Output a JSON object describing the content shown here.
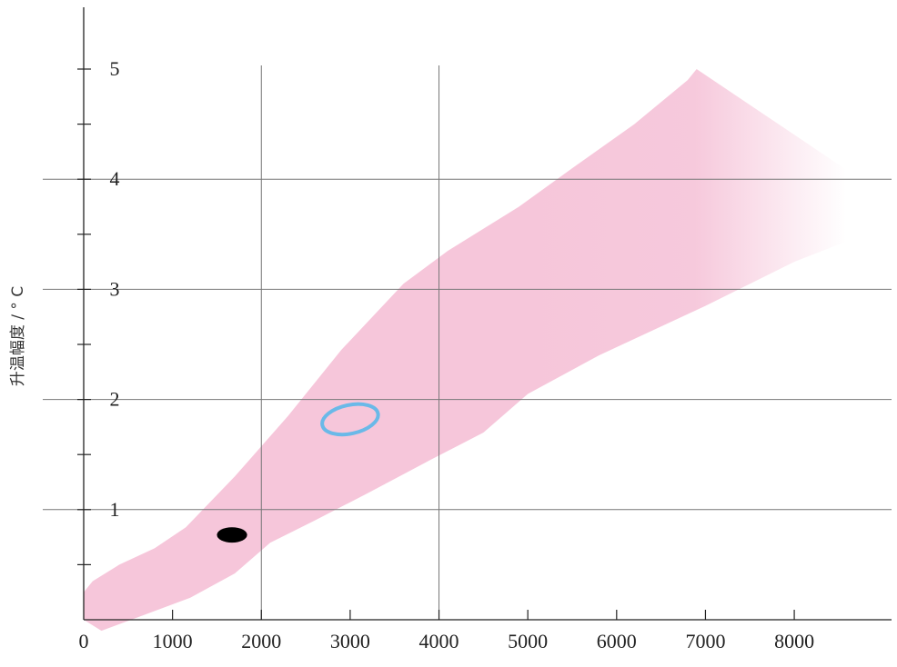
{
  "chart_data": {
    "type": "area",
    "title": "",
    "xlabel": "",
    "ylabel": "升温幅度 / ° C",
    "xlim": [
      0,
      9300
    ],
    "ylim": [
      0,
      5.0
    ],
    "x_ticks": [
      0,
      1000,
      2000,
      3000,
      4000,
      5000,
      6000,
      7000,
      8000
    ],
    "y_ticks": [
      1,
      2,
      3,
      4,
      5
    ],
    "y_minor_ticks": [
      0.5,
      1.5,
      2.5,
      3.5,
      4.5
    ],
    "grid": {
      "vertical": [
        2000,
        4000
      ],
      "horizontal": [
        1,
        2,
        3,
        4
      ]
    },
    "band": {
      "color": "#f6c6da",
      "upper": [
        {
          "x": 0,
          "y": 0.25
        },
        {
          "x": 100,
          "y": 0.35
        },
        {
          "x": 400,
          "y": 0.5
        },
        {
          "x": 800,
          "y": 0.65
        },
        {
          "x": 1150,
          "y": 0.84
        },
        {
          "x": 1700,
          "y": 1.3
        },
        {
          "x": 2300,
          "y": 1.85
        },
        {
          "x": 2900,
          "y": 2.45
        },
        {
          "x": 3600,
          "y": 3.05
        },
        {
          "x": 4100,
          "y": 3.35
        },
        {
          "x": 4900,
          "y": 3.75
        },
        {
          "x": 5500,
          "y": 4.1
        },
        {
          "x": 6200,
          "y": 4.5
        },
        {
          "x": 6800,
          "y": 4.9
        },
        {
          "x": 6900,
          "y": 5.0
        }
      ],
      "lower": [
        {
          "x": 0,
          "y": 0.0
        },
        {
          "x": 200,
          "y": -0.1
        },
        {
          "x": 600,
          "y": 0.02
        },
        {
          "x": 1200,
          "y": 0.2
        },
        {
          "x": 1700,
          "y": 0.42
        },
        {
          "x": 2100,
          "y": 0.7
        },
        {
          "x": 2600,
          "y": 0.9
        },
        {
          "x": 3200,
          "y": 1.15
        },
        {
          "x": 3900,
          "y": 1.45
        },
        {
          "x": 4500,
          "y": 1.7
        },
        {
          "x": 5000,
          "y": 2.05
        },
        {
          "x": 5800,
          "y": 2.4
        },
        {
          "x": 7000,
          "y": 2.85
        },
        {
          "x": 8000,
          "y": 3.25
        },
        {
          "x": 8800,
          "y": 3.5
        }
      ]
    },
    "markers": [
      {
        "type": "filled-ellipse",
        "color": "#000000",
        "x": 1670,
        "y": 0.77,
        "rx": 170,
        "ry": 0.07
      },
      {
        "type": "ring-ellipse",
        "color": "#6ab9e8",
        "x": 3000,
        "y": 1.82,
        "rx": 320,
        "ry": 0.13
      }
    ]
  }
}
